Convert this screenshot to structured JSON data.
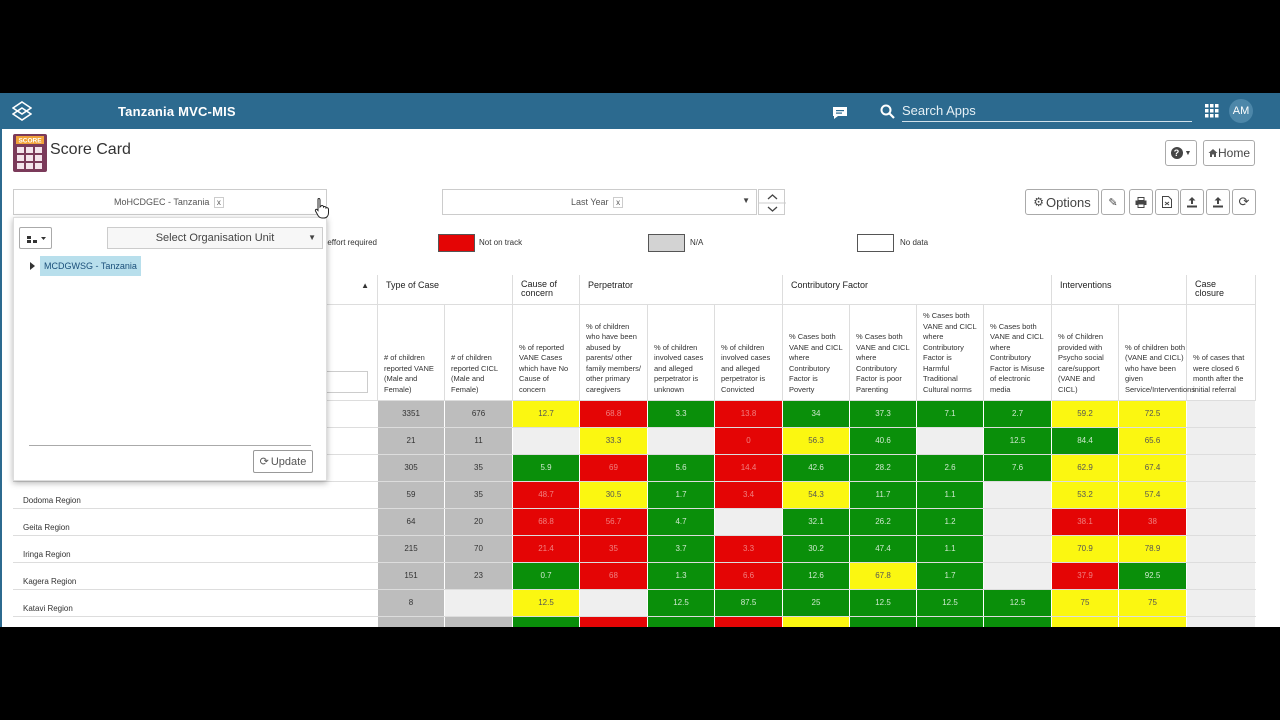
{
  "app": {
    "title": "Tanzania MVC-MIS",
    "search_placeholder": "Search Apps",
    "avatar_initials": "AM",
    "accent_color": "#2c6a8f"
  },
  "page": {
    "title": "Score Card",
    "icon_text": "SCORE",
    "help_label": "?",
    "home_label": "Home",
    "options_label": "Options"
  },
  "filters": {
    "org_chip": "MoHCDGEC - Tanzania",
    "period_chip": "Last Year",
    "remove_chip": "x"
  },
  "legend": [
    {
      "label": "re effort required",
      "color": ""
    },
    {
      "label": "Not on track",
      "color": "#e40505"
    },
    {
      "label": "N/A",
      "color": "#bdbdbd"
    },
    {
      "label": "No data",
      "color": "#ffffff"
    }
  ],
  "org_dropdown": {
    "select_placeholder": "Select Organisation Unit",
    "tree_node": "MCDGWSG - Tanzania",
    "update_label": "Update"
  },
  "table": {
    "groups": [
      {
        "label": "Type of Case"
      },
      {
        "label": "Cause of concern"
      },
      {
        "label": "Perpetrator"
      },
      {
        "label": "Contributory Factor"
      },
      {
        "label": "Interventions"
      },
      {
        "label": "Case closure"
      }
    ],
    "columns": [
      "# of children reported VANE (Male and Female)",
      "# of children reported CICL (Male and Female)",
      "% of reported VANE Cases which have No Cause of concern",
      "% of children who have been abused by parents/ other family members/ other primary caregivers",
      "% of children involved cases and alleged perpetrator is unknown",
      "% of children involved cases and alleged perpetrator is Convicted",
      "% Cases both VANE and CICL where Contributory Factor is Poverty",
      "% Cases both VANE and CICL where Contributory Factor is poor Parenting",
      "% Cases both VANE and CICL where Contributory Factor is Harmful Traditional Cultural norms",
      "% Cases both VANE and CICL where Contributory Factor is Misuse of electronic media",
      "% of Children provided with Psycho social care/support (VANE and CICL)",
      "% of children both (VANE and CICL) who have been given Service/Interventions",
      "% of cases that were closed 6 month after the initial referral"
    ],
    "rows": [
      {
        "name": "",
        "values": [
          "3351",
          "676",
          "12.7",
          "68.8",
          "3.3",
          "13.8",
          "34",
          "37.3",
          "7.1",
          "2.7",
          "59.2",
          "72.5",
          ""
        ],
        "status": [
          "gr",
          "gr",
          "y",
          "r",
          "g",
          "r",
          "g",
          "g",
          "g",
          "g",
          "y",
          "y",
          "e"
        ]
      },
      {
        "name": "",
        "values": [
          "21",
          "11",
          "",
          "33.3",
          "",
          "0",
          "56.3",
          "40.6",
          "",
          "12.5",
          "84.4",
          "65.6",
          ""
        ],
        "status": [
          "gr",
          "gr",
          "e",
          "y",
          "e",
          "r",
          "y",
          "g",
          "e",
          "g",
          "g",
          "y",
          "e"
        ]
      },
      {
        "name": "",
        "values": [
          "305",
          "35",
          "5.9",
          "69",
          "5.6",
          "14.4",
          "42.6",
          "28.2",
          "2.6",
          "7.6",
          "62.9",
          "67.4",
          ""
        ],
        "status": [
          "gr",
          "gr",
          "g",
          "r",
          "g",
          "r",
          "g",
          "g",
          "g",
          "g",
          "y",
          "y",
          "e"
        ]
      },
      {
        "name": "Dodoma Region",
        "values": [
          "59",
          "35",
          "48.7",
          "30.5",
          "1.7",
          "3.4",
          "54.3",
          "11.7",
          "1.1",
          "",
          "53.2",
          "57.4",
          ""
        ],
        "status": [
          "gr",
          "gr",
          "r",
          "y",
          "g",
          "r",
          "y",
          "g",
          "g",
          "e",
          "y",
          "y",
          "e"
        ]
      },
      {
        "name": "Geita Region",
        "values": [
          "64",
          "20",
          "68.8",
          "56.7",
          "4.7",
          "",
          "32.1",
          "26.2",
          "1.2",
          "",
          "38.1",
          "38",
          ""
        ],
        "status": [
          "gr",
          "gr",
          "r",
          "r",
          "g",
          "e",
          "g",
          "g",
          "g",
          "e",
          "r",
          "r",
          "e"
        ]
      },
      {
        "name": "Iringa Region",
        "values": [
          "215",
          "70",
          "21.4",
          "35",
          "3.7",
          "3.3",
          "30.2",
          "47.4",
          "1.1",
          "",
          "70.9",
          "78.9",
          ""
        ],
        "status": [
          "gr",
          "gr",
          "r",
          "r",
          "g",
          "r",
          "g",
          "g",
          "g",
          "e",
          "y",
          "y",
          "e"
        ]
      },
      {
        "name": "Kagera Region",
        "values": [
          "151",
          "23",
          "0.7",
          "68",
          "1.3",
          "6.6",
          "12.6",
          "67.8",
          "1.7",
          "",
          "37.9",
          "92.5",
          ""
        ],
        "status": [
          "gr",
          "gr",
          "g",
          "r",
          "g",
          "r",
          "g",
          "y",
          "g",
          "e",
          "r",
          "g",
          "e"
        ]
      },
      {
        "name": "Katavi Region",
        "values": [
          "8",
          "",
          "12.5",
          "",
          "12.5",
          "87.5",
          "25",
          "12.5",
          "12.5",
          "12.5",
          "75",
          "75",
          ""
        ],
        "status": [
          "gr",
          "e",
          "y",
          "e",
          "g",
          "g",
          "g",
          "g",
          "g",
          "g",
          "y",
          "y",
          "e"
        ]
      },
      {
        "name": "",
        "values": [
          "",
          "",
          "",
          "",
          "",
          "",
          "",
          "",
          "",
          "",
          "",
          "",
          ""
        ],
        "status": [
          "gr",
          "gr",
          "g",
          "r",
          "g",
          "r",
          "y",
          "g",
          "g",
          "g",
          "y",
          "y",
          "e"
        ]
      }
    ]
  }
}
